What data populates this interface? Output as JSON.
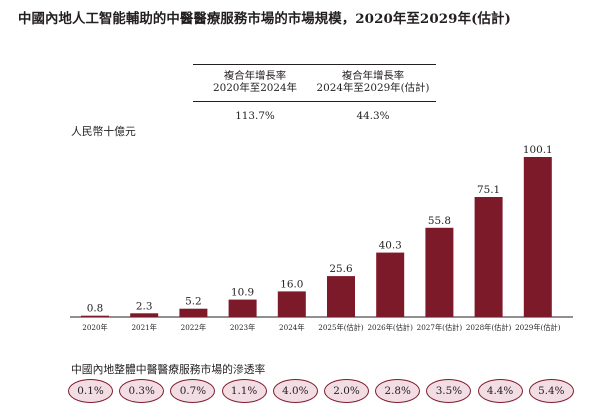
{
  "title": "中國內地人工智能輔助的中醫醫療服務市場的市場規模，2020年至2029年(估計)",
  "cagr_table": {
    "headers": [
      {
        "line1": "複合年增長率",
        "line2": "2020年至2024年"
      },
      {
        "line1": "複合年增長率",
        "line2": "2024年至2029年(估計)"
      }
    ],
    "values": [
      "113.7%",
      "44.3%"
    ]
  },
  "unit_label": "人民幣十億元",
  "bar_color": "#7d1a2a",
  "chart_data": {
    "type": "bar",
    "title": "中國內地人工智能輔助的中醫醫療服務市場的市場規模，2020年至2029年(估計)",
    "ylabel": "人民幣十億元",
    "categories": [
      "2020年",
      "2021年",
      "2022年",
      "2023年",
      "2024年",
      "2025年(估計)",
      "2026年(估計)",
      "2027年(估計)",
      "2028年(估計)",
      "2029年(估計)"
    ],
    "values": [
      0.8,
      2.3,
      5.2,
      10.9,
      16.0,
      25.6,
      40.3,
      55.8,
      75.1,
      100.1
    ],
    "value_labels": [
      "0.8",
      "2.3",
      "5.2",
      "10.9",
      "16.0",
      "25.6",
      "40.3",
      "55.8",
      "75.1",
      "100.1"
    ],
    "ylim": [
      0,
      100.1
    ],
    "grid": false,
    "legend": "none"
  },
  "penetration": {
    "title": "中國內地整體中醫醫療服務市場的滲透率",
    "values": [
      "0.1%",
      "0.3%",
      "0.7%",
      "1.1%",
      "4.0%",
      "2.0%",
      "2.8%",
      "3.5%",
      "4.4%",
      "5.4%"
    ]
  }
}
